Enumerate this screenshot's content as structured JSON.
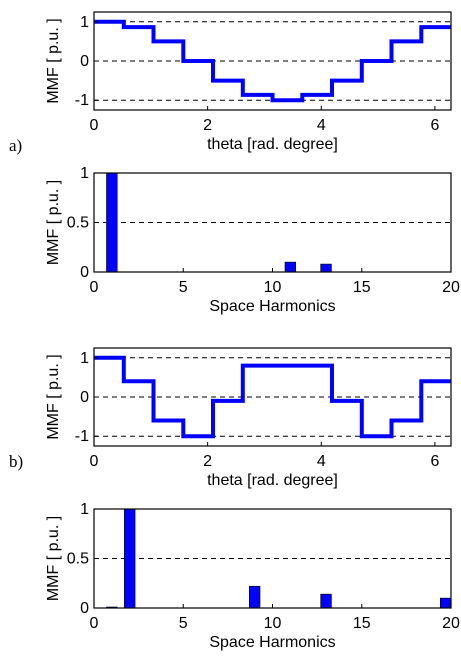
{
  "figure": {
    "labels": {
      "a": "a)",
      "b": "b)"
    },
    "colors": {
      "series": "#0000ff",
      "axis": "#000000",
      "grid": "#000000",
      "background": "#ffffff"
    }
  },
  "chart_data": [
    {
      "type": "line",
      "xlabel": "theta  [rad. degree]",
      "ylabel": "MMF  [ p.u. ]",
      "xlim": [
        0,
        6.2832
      ],
      "ylim": [
        -1.25,
        1.25
      ],
      "xticks": [
        "0",
        "2",
        "4",
        "6"
      ],
      "yticks": [
        "1",
        "0",
        "-1"
      ],
      "grid": "dashed horizontal at y = -1, 0, 1",
      "series": [
        {
          "step_x": [
            0,
            0.5236,
            1.0472,
            1.5708,
            2.0944,
            2.618,
            3.1416,
            3.6652,
            4.1888,
            4.7124,
            5.236,
            5.7596,
            6.2832
          ],
          "step_y": [
            1.0,
            0.866,
            0.5,
            0.0,
            -0.5,
            -0.866,
            -1.0,
            -0.866,
            -0.5,
            0.0,
            0.5,
            0.866
          ]
        }
      ]
    },
    {
      "type": "bar",
      "xlabel": "Space Harmonics",
      "ylabel": "MMF  [ p.u. ]",
      "xlim": [
        0,
        20
      ],
      "ylim": [
        0,
        1
      ],
      "xticks": [
        "0",
        "5",
        "10",
        "15",
        "20"
      ],
      "yticks": [
        "1",
        "0.5",
        "0"
      ],
      "grid": "dashed horizontal at y = 0.5",
      "x": [
        1,
        11,
        13
      ],
      "values": [
        1.0,
        0.1,
        0.08
      ]
    },
    {
      "type": "line",
      "xlabel": "theta  [rad. degree]",
      "ylabel": "MMF  [ p.u. ]",
      "xlim": [
        0,
        6.2832
      ],
      "ylim": [
        -1.25,
        1.25
      ],
      "xticks": [
        "0",
        "2",
        "4",
        "6"
      ],
      "yticks": [
        "1",
        "0",
        "-1"
      ],
      "grid": "dashed horizontal at y = -1, 0, 1",
      "series": [
        {
          "step_x": [
            0,
            0.5236,
            1.0472,
            1.5708,
            2.0944,
            2.618,
            3.1416,
            3.6652,
            4.1888,
            4.7124,
            5.236,
            5.7596,
            6.2832
          ],
          "step_y": [
            1.0,
            0.4,
            -0.6,
            -1.0,
            -0.1,
            0.8,
            0.8,
            0.8,
            -0.1,
            -1.0,
            -0.6,
            0.4
          ]
        }
      ]
    },
    {
      "type": "bar",
      "xlabel": "Space Harmonics",
      "ylabel": "MMF  [ p.u. ]",
      "xlim": [
        0,
        20
      ],
      "ylim": [
        0,
        1
      ],
      "xticks": [
        "0",
        "5",
        "10",
        "15",
        "20"
      ],
      "yticks": [
        "1",
        "0.5",
        "0"
      ],
      "grid": "dashed horizontal at y = 0.5",
      "x": [
        1,
        2,
        9,
        13,
        20
      ],
      "values": [
        0.01,
        1.0,
        0.22,
        0.14,
        0.1
      ]
    }
  ]
}
